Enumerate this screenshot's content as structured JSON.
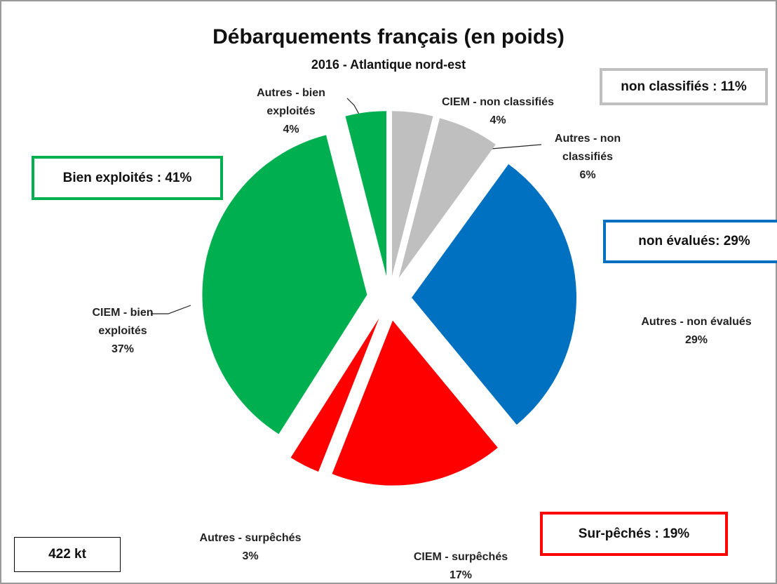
{
  "chart_data": {
    "type": "pie",
    "title": "Débarquements français (en poids)",
    "subtitle": "2016 - Atlantique nord-est",
    "categories": [
      "CIEM - non classifiés",
      "Autres - non classifiés",
      "Autres - non évalués",
      "CIEM - surpêchés",
      "Autres - surpêchés",
      "CIEM - bien exploités",
      "Autres - bien exploités"
    ],
    "values": [
      4,
      6,
      29,
      17,
      3,
      37,
      4
    ],
    "value_labels": [
      "4%",
      "6%",
      "29%",
      "17%",
      "3%",
      "37%",
      "4%"
    ],
    "colors": [
      "#bfbfbf",
      "#bfbfbf",
      "#0070c0",
      "#ff0000",
      "#ff0000",
      "#00b050",
      "#00b050"
    ],
    "annotations": [
      {
        "text": "non classifiés : 11%",
        "color": "#bfbfbf"
      },
      {
        "text": "Bien exploités : 41%",
        "color": "#00b050"
      },
      {
        "text": "non évalués: 29%",
        "color": "#0070c0"
      },
      {
        "text": "Sur-pêchés : 19%",
        "color": "#ff0000"
      },
      {
        "text": "422 kt",
        "color": "#000000"
      }
    ]
  }
}
